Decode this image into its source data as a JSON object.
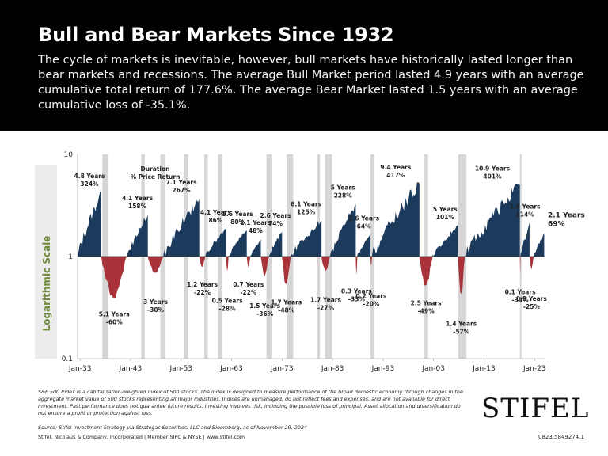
{
  "header": {
    "title": "Bull and Bear Markets Since 1932",
    "description": "The cycle of markets is inevitable, however, bull markets have historically lasted longer than bear markets and recessions. The average Bull Market period lasted 4.9 years with an average cumulative total return of 177.6%. The average Bear Market lasted 1.5 years with an average cumulative loss of -35.1%."
  },
  "chart_data": {
    "type": "area",
    "scale": "log",
    "ylabel": "Logarithmic Scale",
    "y_ticks": [
      "10",
      "1",
      "0.1"
    ],
    "y_tick_values": [
      10,
      1,
      0.1
    ],
    "ylim": [
      0.1,
      10
    ],
    "xlim": [
      1932.5,
      2025
    ],
    "x_ticks": [
      "Jan-33",
      "Jan-43",
      "Jan-53",
      "Jan-63",
      "Jan-73",
      "Jan-83",
      "Jan-93",
      "Jan-03",
      "Jan-13",
      "Jan-23"
    ],
    "x_tick_values": [
      1933,
      1943,
      1953,
      1963,
      1973,
      1983,
      1993,
      2003,
      2013,
      2023
    ],
    "legend": {
      "line1": "Duration",
      "line2": "% Price Return"
    },
    "colors": {
      "bull": "#1b3a5c",
      "bear": "#a8323a",
      "recession": "#d6d6d6",
      "axis_label": "#6e8a3a"
    },
    "recession_bands": [
      [
        1937.4,
        1938.5
      ],
      [
        1945.1,
        1945.8
      ],
      [
        1948.9,
        1949.8
      ],
      [
        1953.5,
        1954.4
      ],
      [
        1957.6,
        1958.3
      ],
      [
        1960.3,
        1961.1
      ],
      [
        1969.9,
        1970.9
      ],
      [
        1973.9,
        1975.2
      ],
      [
        1980.0,
        1980.5
      ],
      [
        1981.5,
        1982.9
      ],
      [
        1990.5,
        1991.2
      ],
      [
        2001.2,
        2001.9
      ],
      [
        2007.9,
        2009.5
      ],
      [
        2020.1,
        2020.4
      ]
    ],
    "periods": [
      {
        "kind": "bull",
        "start": 1932.5,
        "end": 1937.2,
        "years": "4.8 Years",
        "ret": "324%",
        "peak": 4.24
      },
      {
        "kind": "bear",
        "start": 1937.2,
        "end": 1942.3,
        "years": "5.1 Years",
        "ret": "-60%",
        "trough": 0.4
      },
      {
        "kind": "bull",
        "start": 1942.3,
        "end": 1946.4,
        "years": "4.1 Years",
        "ret": "158%",
        "peak": 2.58
      },
      {
        "kind": "bear",
        "start": 1946.4,
        "end": 1949.5,
        "years": "3 Years",
        "ret": "-30%",
        "trough": 0.7
      },
      {
        "kind": "bull",
        "start": 1949.5,
        "end": 1956.6,
        "years": "7.1 Years",
        "ret": "267%",
        "peak": 3.67
      },
      {
        "kind": "bear",
        "start": 1956.6,
        "end": 1957.8,
        "years": "1.2 Years",
        "ret": "-22%",
        "trough": 0.78
      },
      {
        "kind": "bull",
        "start": 1957.8,
        "end": 1961.9,
        "years": "4.1 Years",
        "ret": "86%",
        "peak": 1.86
      },
      {
        "kind": "bear",
        "start": 1961.9,
        "end": 1962.4,
        "years": "0.5 Years",
        "ret": "-28%",
        "trough": 0.72
      },
      {
        "kind": "bull",
        "start": 1962.4,
        "end": 1966.0,
        "years": "3.6 Years",
        "ret": "80%",
        "peak": 1.8
      },
      {
        "kind": "bear",
        "start": 1966.0,
        "end": 1966.7,
        "years": "0.7 Years",
        "ret": "-22%",
        "trough": 0.78
      },
      {
        "kind": "bull",
        "start": 1966.7,
        "end": 1968.8,
        "years": "2.1 Years",
        "ret": "48%",
        "peak": 1.48
      },
      {
        "kind": "bear",
        "start": 1968.8,
        "end": 1970.4,
        "years": "1.5 Years",
        "ret": "-36%",
        "trough": 0.64
      },
      {
        "kind": "bull",
        "start": 1970.4,
        "end": 1973.0,
        "years": "2.6 Years",
        "ret": "74%",
        "peak": 1.74
      },
      {
        "kind": "bear",
        "start": 1973.0,
        "end": 1974.7,
        "years": "1.7 Years",
        "ret": "-48%",
        "trough": 0.52
      },
      {
        "kind": "bull",
        "start": 1974.7,
        "end": 1980.8,
        "years": "6.1 Years",
        "ret": "125%",
        "peak": 2.25
      },
      {
        "kind": "bear",
        "start": 1980.8,
        "end": 1982.5,
        "years": "1.7 Years",
        "ret": "-27%",
        "trough": 0.73
      },
      {
        "kind": "bull",
        "start": 1982.5,
        "end": 1987.6,
        "years": "5 Years",
        "ret": "228%",
        "peak": 3.28
      },
      {
        "kind": "bear",
        "start": 1987.6,
        "end": 1987.9,
        "years": "0.3 Years",
        "ret": "-33%",
        "trough": 0.67
      },
      {
        "kind": "bull",
        "start": 1987.9,
        "end": 1990.5,
        "years": "2.6 Years",
        "ret": "64%",
        "peak": 1.64
      },
      {
        "kind": "bear",
        "start": 1990.5,
        "end": 1990.8,
        "years": "0.2 Years",
        "ret": "-20%",
        "trough": 0.8
      },
      {
        "kind": "bull",
        "start": 1990.8,
        "end": 2000.2,
        "years": "9.4 Years",
        "ret": "417%",
        "peak": 5.17
      },
      {
        "kind": "bear",
        "start": 2000.2,
        "end": 2002.8,
        "years": "2.5 Years",
        "ret": "-49%",
        "trough": 0.51
      },
      {
        "kind": "bull",
        "start": 2002.8,
        "end": 2007.8,
        "years": "5 Years",
        "ret": "101%",
        "peak": 2.01
      },
      {
        "kind": "bear",
        "start": 2007.8,
        "end": 2009.2,
        "years": "1.4 Years",
        "ret": "-57%",
        "trough": 0.43
      },
      {
        "kind": "bull",
        "start": 2009.2,
        "end": 2020.1,
        "years": "10.9 Years",
        "ret": "401%",
        "peak": 5.01
      },
      {
        "kind": "bear",
        "start": 2020.1,
        "end": 2020.2,
        "years": "0.1 Years",
        "ret": "-34%",
        "trough": 0.66
      },
      {
        "kind": "bull",
        "start": 2020.2,
        "end": 2022.0,
        "years": "1.8 Years",
        "ret": "114%",
        "peak": 2.14
      },
      {
        "kind": "bear",
        "start": 2022.0,
        "end": 2022.8,
        "years": "0.9 Years",
        "ret": "-25%",
        "trough": 0.75
      },
      {
        "kind": "bull",
        "start": 2022.8,
        "end": 2024.9,
        "years": "2.1 Years",
        "ret": "69%",
        "peak": 1.69,
        "current": true
      }
    ]
  },
  "footer": {
    "notes": "S&P 500 Index is a capitalization-weighted index of 500 stocks. The index is designed to measure performance of the broad domestic economy through changes in the aggregate market value of 500 stocks representing all major industries. Indices are unmanaged, do not reflect fees and expenses, and are not available for direct investment. Past performance does not guarantee future results. Investing involves risk, including the possible loss of principal. Asset allocation and diversification do not ensure a profit or protection against loss.",
    "source": "Source: Stifel Investment Strategy via Strategas Securities, LLC and Bloomberg, as of November 29, 2024",
    "company": "Stifel, Nicolaus & Company, Incorporated | Member SIPC & NYSE | www.stifel.com",
    "logo": "STIFEL",
    "code": "0823.5849274.1"
  }
}
